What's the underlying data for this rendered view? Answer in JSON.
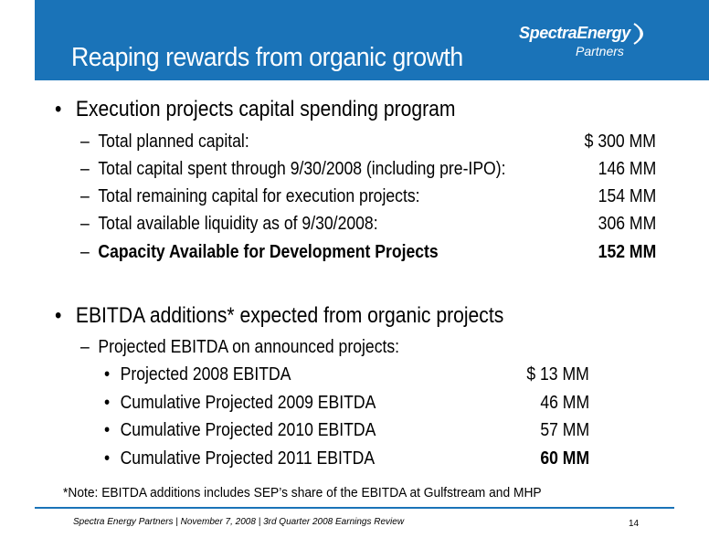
{
  "slide": {
    "title": "Reaping rewards from organic growth",
    "logo": {
      "main": "SpectraEnergy",
      "sub": "Partners"
    }
  },
  "section1": {
    "heading": "Execution projects capital spending program",
    "items": [
      {
        "label": "Total planned capital:",
        "value": "$ 300 MM",
        "bold": false
      },
      {
        "label": "Total capital spent through 9/30/2008 (including pre-IPO):",
        "value": "146 MM",
        "bold": false
      },
      {
        "label": "Total remaining capital for execution projects:",
        "value": "154 MM",
        "bold": false
      },
      {
        "label": "Total available liquidity as of 9/30/2008:",
        "value": "306 MM",
        "bold": false
      },
      {
        "label": "Capacity Available for Development Projects",
        "value": "152 MM",
        "bold": true
      }
    ]
  },
  "section2": {
    "heading": "EBITDA additions* expected from organic projects",
    "subheading": "Projected EBITDA on announced projects:",
    "items": [
      {
        "label": "Projected 2008 EBITDA",
        "value": "$ 13 MM",
        "bold": false
      },
      {
        "label": "Cumulative Projected 2009 EBITDA",
        "value": "46 MM",
        "bold": false
      },
      {
        "label": "Cumulative Projected 2010 EBITDA",
        "value": "57 MM",
        "bold": false
      },
      {
        "label": "Cumulative Projected 2011 EBITDA",
        "value": "60 MM",
        "bold": true
      }
    ]
  },
  "note": "*Note: EBITDA additions includes SEP’s share of the EBITDA at Gulfstream and MHP",
  "footer": {
    "text": "Spectra Energy Partners | November 7, 2008 | 3rd Quarter 2008 Earnings Review",
    "page": "14"
  },
  "colors": {
    "header_blue": "#1a73b8",
    "text": "#000000"
  }
}
